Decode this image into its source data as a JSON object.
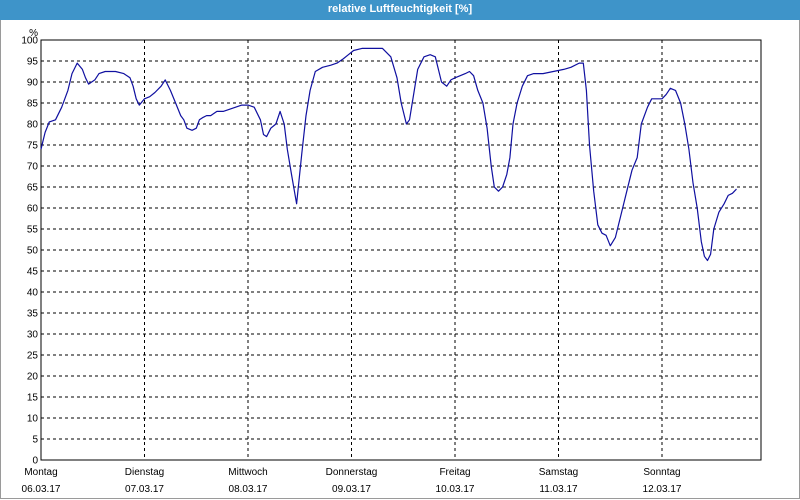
{
  "window": {
    "title": "relative Luftfeuchtigkeit [%]"
  },
  "chart_data": {
    "type": "line",
    "title": "relative Luftfeuchtigkeit [%]",
    "ylabel": "%",
    "xlabel": "",
    "ylim": [
      0,
      100
    ],
    "yticks": [
      0,
      5,
      10,
      15,
      20,
      25,
      30,
      35,
      40,
      45,
      50,
      55,
      60,
      65,
      70,
      75,
      80,
      85,
      90,
      95,
      100
    ],
    "grid": true,
    "line_color": "#1010a0",
    "grid_color": "#000000",
    "xlim": [
      0,
      7
    ],
    "xticks": [
      {
        "x": 0,
        "day": "Montag",
        "date": "06.03.17"
      },
      {
        "x": 1,
        "day": "Dienstag",
        "date": "07.03.17"
      },
      {
        "x": 2,
        "day": "Mittwoch",
        "date": "08.03.17"
      },
      {
        "x": 3,
        "day": "Donnerstag",
        "date": "09.03.17"
      },
      {
        "x": 4,
        "day": "Freitag",
        "date": "10.03.17"
      },
      {
        "x": 5,
        "day": "Samstag",
        "date": "11.03.17"
      },
      {
        "x": 6,
        "day": "Sonntag",
        "date": "12.03.17"
      }
    ],
    "series": [
      {
        "values": [
          [
            0.0,
            74
          ],
          [
            0.04,
            78
          ],
          [
            0.08,
            80.5
          ],
          [
            0.14,
            81
          ],
          [
            0.2,
            84
          ],
          [
            0.26,
            88
          ],
          [
            0.3,
            92
          ],
          [
            0.35,
            94.5
          ],
          [
            0.4,
            93
          ],
          [
            0.43,
            91
          ],
          [
            0.46,
            89.5
          ],
          [
            0.52,
            90.5
          ],
          [
            0.56,
            92
          ],
          [
            0.62,
            92.5
          ],
          [
            0.72,
            92.5
          ],
          [
            0.8,
            92
          ],
          [
            0.86,
            91
          ],
          [
            0.89,
            89
          ],
          [
            0.92,
            86
          ],
          [
            0.95,
            84.5
          ],
          [
            1.0,
            86
          ],
          [
            1.05,
            86.5
          ],
          [
            1.1,
            87.5
          ],
          [
            1.16,
            89
          ],
          [
            1.2,
            90.5
          ],
          [
            1.25,
            88
          ],
          [
            1.3,
            85
          ],
          [
            1.35,
            82
          ],
          [
            1.38,
            81
          ],
          [
            1.41,
            79
          ],
          [
            1.46,
            78.5
          ],
          [
            1.5,
            79
          ],
          [
            1.53,
            81
          ],
          [
            1.56,
            81.5
          ],
          [
            1.6,
            82
          ],
          [
            1.64,
            82
          ],
          [
            1.7,
            83
          ],
          [
            1.76,
            83
          ],
          [
            1.82,
            83.5
          ],
          [
            1.88,
            84
          ],
          [
            1.94,
            84.5
          ],
          [
            2.0,
            84.5
          ],
          [
            2.06,
            84
          ],
          [
            2.12,
            81
          ],
          [
            2.15,
            77.5
          ],
          [
            2.18,
            77
          ],
          [
            2.22,
            79
          ],
          [
            2.27,
            80
          ],
          [
            2.31,
            83
          ],
          [
            2.35,
            80
          ],
          [
            2.38,
            74
          ],
          [
            2.42,
            68
          ],
          [
            2.47,
            61
          ],
          [
            2.52,
            73
          ],
          [
            2.56,
            82
          ],
          [
            2.6,
            88
          ],
          [
            2.65,
            92.5
          ],
          [
            2.72,
            93.5
          ],
          [
            2.8,
            94
          ],
          [
            2.86,
            94.5
          ],
          [
            2.92,
            95.5
          ],
          [
            2.97,
            96.5
          ],
          [
            3.02,
            97.5
          ],
          [
            3.1,
            98
          ],
          [
            3.2,
            98
          ],
          [
            3.3,
            98
          ],
          [
            3.38,
            96
          ],
          [
            3.44,
            91
          ],
          [
            3.48,
            85
          ],
          [
            3.53,
            80
          ],
          [
            3.56,
            81
          ],
          [
            3.6,
            87
          ],
          [
            3.64,
            93
          ],
          [
            3.7,
            96
          ],
          [
            3.76,
            96.5
          ],
          [
            3.81,
            96
          ],
          [
            3.84,
            93
          ],
          [
            3.87,
            90
          ],
          [
            3.92,
            89
          ],
          [
            3.96,
            90.5
          ],
          [
            4.0,
            91
          ],
          [
            4.05,
            91.5
          ],
          [
            4.1,
            92
          ],
          [
            4.14,
            92.5
          ],
          [
            4.18,
            91.5
          ],
          [
            4.22,
            88
          ],
          [
            4.27,
            85
          ],
          [
            4.31,
            79
          ],
          [
            4.35,
            70
          ],
          [
            4.38,
            65
          ],
          [
            4.42,
            64
          ],
          [
            4.46,
            65
          ],
          [
            4.5,
            68
          ],
          [
            4.53,
            72
          ],
          [
            4.56,
            80
          ],
          [
            4.6,
            85
          ],
          [
            4.65,
            89
          ],
          [
            4.7,
            91.5
          ],
          [
            4.76,
            92
          ],
          [
            4.85,
            92
          ],
          [
            4.95,
            92.5
          ],
          [
            5.05,
            93
          ],
          [
            5.12,
            93.5
          ],
          [
            5.2,
            94.5
          ],
          [
            5.24,
            94.5
          ],
          [
            5.27,
            88
          ],
          [
            5.3,
            75
          ],
          [
            5.34,
            64
          ],
          [
            5.38,
            56
          ],
          [
            5.42,
            54
          ],
          [
            5.46,
            53.5
          ],
          [
            5.5,
            51
          ],
          [
            5.55,
            53
          ],
          [
            5.6,
            58
          ],
          [
            5.66,
            64
          ],
          [
            5.71,
            69
          ],
          [
            5.76,
            72
          ],
          [
            5.8,
            80
          ],
          [
            5.86,
            84
          ],
          [
            5.9,
            86
          ],
          [
            5.95,
            86
          ],
          [
            6.0,
            86
          ],
          [
            6.04,
            87
          ],
          [
            6.08,
            88.5
          ],
          [
            6.13,
            88
          ],
          [
            6.18,
            85
          ],
          [
            6.22,
            80
          ],
          [
            6.26,
            74
          ],
          [
            6.3,
            66
          ],
          [
            6.34,
            60
          ],
          [
            6.38,
            52
          ],
          [
            6.41,
            48.5
          ],
          [
            6.44,
            47.5
          ],
          [
            6.47,
            49
          ],
          [
            6.5,
            55
          ],
          [
            6.55,
            59
          ],
          [
            6.6,
            61
          ],
          [
            6.64,
            63
          ],
          [
            6.68,
            63.5
          ],
          [
            6.72,
            64.5
          ]
        ]
      }
    ]
  }
}
